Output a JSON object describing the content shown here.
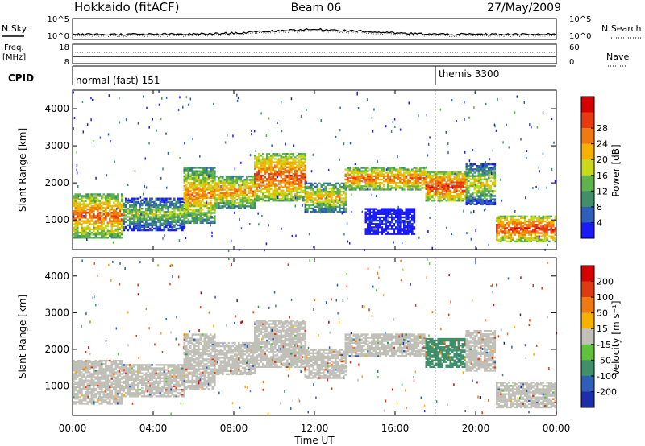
{
  "header": {
    "station": "Hokkaido (fitACF)",
    "beam": "Beam 06",
    "date": "27/May/2009"
  },
  "status_panels": {
    "nsky_label": "N.Sky",
    "nsearch_label": "N.Search",
    "freq_label_line1": "Freq.",
    "freq_label_line2": "[MHz]",
    "nave_label": "Nave",
    "cpid_label": "CPID",
    "noise_left_ticks": [
      "10^5",
      "10^0"
    ],
    "noise_right_ticks": [
      "10^5",
      "10^0"
    ],
    "freq_left_ticks": [
      "18",
      "8"
    ],
    "freq_right_ticks": [
      "60",
      "0"
    ],
    "cpid_segments": [
      {
        "start_hour": 0,
        "label": "normal (fast) 151"
      },
      {
        "start_hour": 18,
        "label": "themis 3300"
      }
    ]
  },
  "axes": {
    "time_ticks": [
      "00:00",
      "04:00",
      "08:00",
      "12:00",
      "16:00",
      "20:00",
      "00:00"
    ],
    "xlabel": "Time UT",
    "range_ticks": [
      "1000",
      "2000",
      "3000",
      "4000"
    ],
    "ylabel": "Slant Range [km]",
    "power_colorbar_label": "Power [dB]",
    "power_colorbar_ticks": [
      "4",
      "8",
      "12",
      "16",
      "20",
      "24",
      "28"
    ],
    "velocity_colorbar_label": "Velocity [m s⁻¹]",
    "velocity_colorbar_ticks": [
      "200",
      "100",
      "50",
      "15",
      "-15",
      "-50",
      "-100",
      "-200"
    ]
  },
  "colors": {
    "power_scale": [
      "#1a1aff",
      "#2f5fb8",
      "#3f8f6a",
      "#5fb34a",
      "#c8d81a",
      "#f5b100",
      "#f07a10",
      "#e83a10",
      "#d60000"
    ],
    "velocity_scale": [
      "#1a2fa8",
      "#2f5fb8",
      "#3f8f6a",
      "#5fc33a",
      "#c0c0b8",
      "#f5b100",
      "#f07a10",
      "#e03a10",
      "#d60000"
    ],
    "ground_scatter": "#c0c0b8"
  },
  "chart_data": [
    {
      "type": "heatmap",
      "panel": "power",
      "x_unit": "hours UT",
      "xlim": [
        0,
        24
      ],
      "ylim": [
        200,
        4500
      ],
      "zlim": [
        3,
        30
      ],
      "scatter_bands": [
        {
          "t0": 0.0,
          "t1": 2.5,
          "r0": 500,
          "r1": 1700,
          "level": 24
        },
        {
          "t0": 2.5,
          "t1": 5.5,
          "r0": 700,
          "r1": 1600,
          "level": 16
        },
        {
          "t0": 5.5,
          "t1": 7.0,
          "r0": 900,
          "r1": 2400,
          "level": 22
        },
        {
          "t0": 7.0,
          "t1": 9.0,
          "r0": 1300,
          "r1": 2200,
          "level": 22
        },
        {
          "t0": 9.0,
          "t1": 11.5,
          "r0": 1500,
          "r1": 2800,
          "level": 25
        },
        {
          "t0": 11.5,
          "t1": 13.5,
          "r0": 1200,
          "r1": 2000,
          "level": 20
        },
        {
          "t0": 13.5,
          "t1": 17.5,
          "r0": 1800,
          "r1": 2400,
          "level": 24
        },
        {
          "t0": 17.5,
          "t1": 19.5,
          "r0": 1500,
          "r1": 2300,
          "level": 26
        },
        {
          "t0": 19.5,
          "t1": 21.0,
          "r0": 1400,
          "r1": 2500,
          "level": 18
        },
        {
          "t0": 21.0,
          "t1": 24.0,
          "r0": 400,
          "r1": 1100,
          "level": 26
        },
        {
          "t0": 14.5,
          "t1": 17.0,
          "r0": 600,
          "r1": 1300,
          "level": 7
        }
      ],
      "colorbar": {
        "label": "Power [dB]",
        "ticks": [
          4,
          8,
          12,
          16,
          20,
          24,
          28
        ]
      }
    },
    {
      "type": "heatmap",
      "panel": "velocity",
      "x_unit": "hours UT",
      "xlim": [
        0,
        24
      ],
      "ylim": [
        200,
        4500
      ],
      "zlim": [
        -250,
        250
      ],
      "scatter_bands": [
        {
          "t0": 0.0,
          "t1": 2.5,
          "r0": 500,
          "r1": 1700,
          "level": 0
        },
        {
          "t0": 2.5,
          "t1": 5.5,
          "r0": 700,
          "r1": 1600,
          "level": 0
        },
        {
          "t0": 5.5,
          "t1": 7.0,
          "r0": 900,
          "r1": 2400,
          "level": 0
        },
        {
          "t0": 7.0,
          "t1": 9.0,
          "r0": 1300,
          "r1": 2200,
          "level": 0
        },
        {
          "t0": 9.0,
          "t1": 11.5,
          "r0": 1500,
          "r1": 2800,
          "level": 0
        },
        {
          "t0": 11.5,
          "t1": 13.5,
          "r0": 1200,
          "r1": 2000,
          "level": 0
        },
        {
          "t0": 13.5,
          "t1": 17.5,
          "r0": 1800,
          "r1": 2400,
          "level": 0
        },
        {
          "t0": 17.5,
          "t1": 19.5,
          "r0": 1500,
          "r1": 2300,
          "level": 60
        },
        {
          "t0": 19.5,
          "t1": 21.0,
          "r0": 1400,
          "r1": 2500,
          "level": 0
        },
        {
          "t0": 21.0,
          "t1": 24.0,
          "r0": 400,
          "r1": 1100,
          "level": 0
        }
      ],
      "colorbar": {
        "label": "Velocity [m s⁻¹]",
        "ticks": [
          200,
          100,
          50,
          15,
          -15,
          -50,
          -100,
          -200
        ]
      }
    }
  ]
}
